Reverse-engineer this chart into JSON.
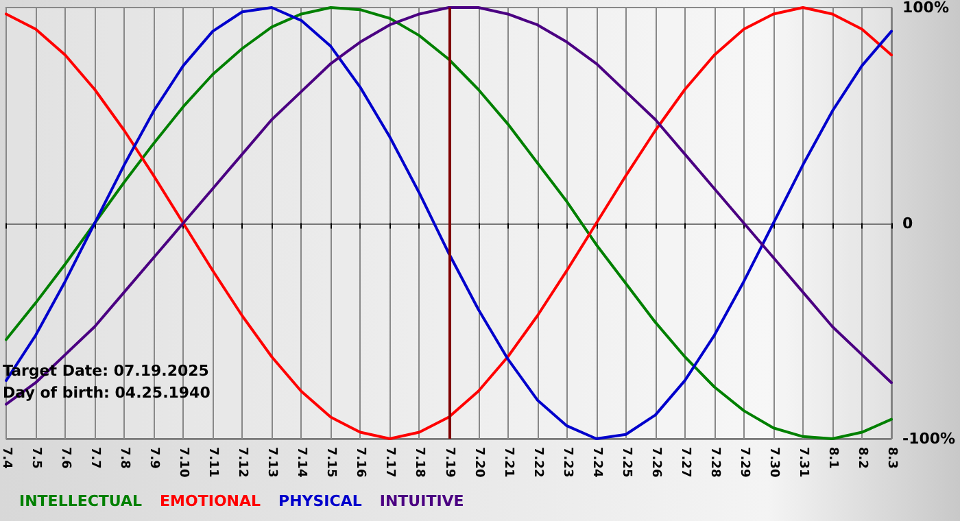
{
  "chart_data": {
    "type": "line",
    "categories": [
      "7.4",
      "7.5",
      "7.6",
      "7.7",
      "7.8",
      "7.9",
      "7.10",
      "7.11",
      "7.12",
      "7.13",
      "7.14",
      "7.15",
      "7.16",
      "7.17",
      "7.18",
      "7.19",
      "7.20",
      "7.21",
      "7.22",
      "7.23",
      "7.24",
      "7.25",
      "7.26",
      "7.27",
      "7.28",
      "7.29",
      "7.30",
      "7.31",
      "8.1",
      "8.2",
      "8.3"
    ],
    "series": [
      {
        "name": "INTELLECTUAL",
        "color": "#008000",
        "values": [
          -54,
          -37,
          -19,
          0,
          19,
          37,
          54,
          69,
          81,
          91,
          97,
          100,
          99,
          95,
          87,
          76,
          62,
          46,
          28,
          10,
          -10,
          -28,
          -46,
          -62,
          -76,
          -87,
          -95,
          -99,
          -100,
          -97,
          -91
        ]
      },
      {
        "name": "EMOTIONAL",
        "color": "#ff0000",
        "values": [
          97,
          90,
          78,
          62,
          43,
          22,
          0,
          -22,
          -43,
          -62,
          -78,
          -90,
          -97,
          -100,
          -97,
          -90,
          -78,
          -62,
          -43,
          -22,
          0,
          22,
          43,
          62,
          78,
          90,
          97,
          100,
          97,
          90,
          78
        ]
      },
      {
        "name": "PHYSICAL",
        "color": "#0000cc",
        "values": [
          -73,
          -52,
          -27,
          0,
          27,
          52,
          73,
          89,
          98,
          100,
          94,
          82,
          63,
          40,
          14,
          -14,
          -40,
          -63,
          -82,
          -94,
          -100,
          -98,
          -89,
          -73,
          -52,
          -27,
          0,
          27,
          52,
          73,
          89
        ]
      },
      {
        "name": "INTUITIVE",
        "color": "#4b0082",
        "values": [
          -84,
          -74,
          -61,
          -48,
          -32,
          -16,
          0,
          16,
          32,
          48,
          61,
          74,
          84,
          92,
          97,
          100,
          100,
          97,
          92,
          84,
          74,
          61,
          48,
          32,
          16,
          0,
          -16,
          -32,
          -48,
          -61,
          -74
        ]
      }
    ],
    "ylim": [
      -100,
      100
    ],
    "yticks": [
      {
        "value": -100,
        "label": "-100%"
      },
      0,
      {
        "value": 100,
        "label": "100%"
      }
    ],
    "ref_lines": [
      {
        "axis": "x",
        "value": "7.19",
        "color": "#800000"
      }
    ],
    "annotations": [
      "Target Date: 07.19.2025",
      "Day of birth: 04.25.1940"
    ],
    "grid": true,
    "legend": "bottom left",
    "marker": "none",
    "line_style": "solid"
  }
}
